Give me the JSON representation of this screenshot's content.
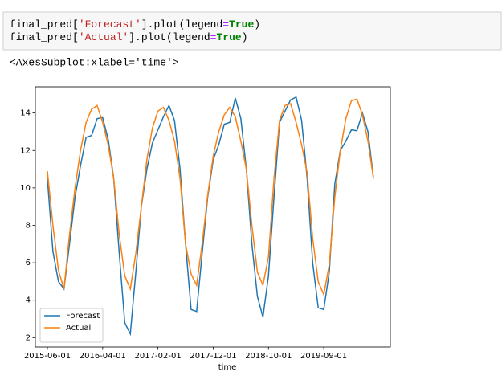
{
  "code": {
    "lines": [
      [
        "final_pred[",
        "'Forecast'",
        "].plot(legend",
        "=",
        "True",
        ")"
      ],
      [
        "final_pred[",
        "'Actual'",
        "].plot(legend",
        "=",
        "True",
        ")"
      ]
    ]
  },
  "output": "<AxesSubplot:xlabel='time'>",
  "chart_data": {
    "type": "line",
    "xlabel": "time",
    "categories": [
      "2015-06-01",
      null,
      null,
      null,
      null,
      null,
      null,
      null,
      null,
      null,
      "2016-04-01",
      null,
      null,
      null,
      null,
      null,
      null,
      null,
      null,
      null,
      "2017-02-01",
      null,
      null,
      null,
      null,
      null,
      null,
      null,
      null,
      null,
      "2017-12-01",
      null,
      null,
      null,
      null,
      null,
      null,
      null,
      null,
      null,
      "2018-10-01",
      null,
      null,
      null,
      null,
      null,
      null,
      null,
      null,
      null,
      "2019-09-01",
      null,
      null,
      null,
      null,
      null,
      null,
      null,
      null,
      null
    ],
    "series": [
      {
        "name": "Forecast",
        "color": "#1f77b4",
        "values": [
          10.5,
          6.6,
          5.0,
          4.6,
          7.0,
          9.5,
          11.2,
          12.7,
          12.8,
          13.7,
          13.75,
          12.6,
          10.5,
          6.5,
          2.8,
          2.2,
          5.5,
          9.0,
          11.0,
          12.4,
          13.1,
          13.8,
          14.4,
          13.6,
          11.0,
          7.0,
          3.5,
          3.4,
          6.5,
          9.5,
          11.5,
          12.3,
          13.4,
          13.5,
          14.8,
          13.7,
          11.0,
          7.0,
          4.2,
          3.1,
          5.3,
          9.5,
          13.5,
          14.1,
          14.7,
          14.85,
          13.6,
          10.5,
          6.0,
          3.6,
          3.5,
          5.5,
          10.2,
          12.0,
          12.5,
          13.1,
          13.05,
          14.0,
          13.0,
          10.5
        ]
      },
      {
        "name": "Actual",
        "color": "#ff7f0e",
        "values": [
          10.9,
          8.0,
          5.6,
          4.6,
          7.5,
          10.0,
          12.0,
          13.5,
          14.2,
          14.4,
          13.5,
          12.3,
          10.5,
          7.5,
          5.3,
          4.6,
          6.5,
          9.0,
          11.5,
          13.2,
          14.1,
          14.3,
          13.6,
          12.5,
          10.5,
          7.0,
          5.4,
          4.8,
          7.0,
          9.6,
          11.7,
          13.0,
          13.9,
          14.3,
          13.8,
          12.5,
          11.0,
          8.0,
          5.5,
          4.8,
          6.3,
          10.5,
          13.6,
          14.4,
          14.5,
          13.5,
          12.3,
          10.8,
          7.3,
          5.0,
          4.3,
          5.9,
          9.5,
          12.0,
          13.7,
          14.65,
          14.75,
          13.9,
          12.5,
          10.5
        ]
      }
    ],
    "ylim": [
      1.5,
      15.4
    ],
    "yticks": [
      2,
      4,
      6,
      8,
      10,
      12,
      14
    ],
    "grid": false,
    "legend": "lower left"
  }
}
